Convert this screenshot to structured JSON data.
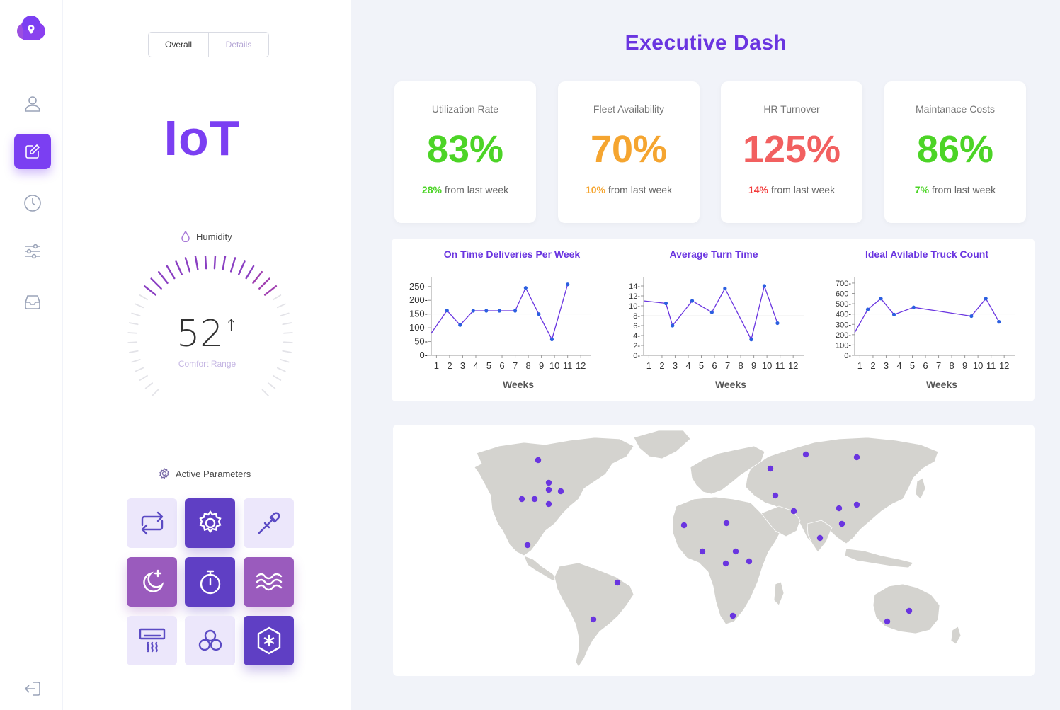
{
  "nav": {
    "items": [
      {
        "icon": "user-icon"
      },
      {
        "icon": "edit-icon",
        "active": true
      },
      {
        "icon": "clock-icon"
      },
      {
        "icon": "sliders-icon"
      },
      {
        "icon": "inbox-icon"
      }
    ],
    "logout_icon": "logout-icon"
  },
  "iot": {
    "tabs": [
      "Overall",
      "Details"
    ],
    "active_tab": "Overall",
    "title": "IoT",
    "humidity": {
      "label": "Humidity",
      "value": "52",
      "arrow": "↑",
      "caption": "Comfort Range",
      "level_fraction": 0.5
    },
    "active_parameters": {
      "label": "Active Parameters",
      "buttons": [
        {
          "icon": "repeat-icon",
          "style": "light"
        },
        {
          "icon": "settings-icon",
          "style": "dark"
        },
        {
          "icon": "eyedropper-icon",
          "style": "light"
        },
        {
          "icon": "night-mode-icon",
          "style": "mauve"
        },
        {
          "icon": "timer-icon",
          "style": "dark"
        },
        {
          "icon": "waves-icon",
          "style": "mauve"
        },
        {
          "icon": "air-conditioner-icon",
          "style": "light"
        },
        {
          "icon": "fan-icon",
          "style": "light"
        },
        {
          "icon": "snowflake-icon",
          "style": "dark"
        }
      ]
    }
  },
  "dashboard": {
    "title": "Executive Dash",
    "kpis": [
      {
        "title": "Utilization Rate",
        "value": "83%",
        "change": "28%",
        "suffix": " from last week",
        "color": "#4cd426"
      },
      {
        "title": "Fleet Availability",
        "value": "70%",
        "change": "10%",
        "suffix": " from last week",
        "color": "#f5a530"
      },
      {
        "title": "HR Turnover",
        "value": "125%",
        "change": "14%",
        "suffix": " from last week",
        "color": "#f26060"
      },
      {
        "title": "Maintanace Costs",
        "value": "86%",
        "change": "7%",
        "suffix": " from last week",
        "color": "#4cd426"
      }
    ]
  },
  "chart_data": [
    {
      "type": "line",
      "title": "On Time Deliveries Per Week",
      "xlabel": "Weeks",
      "ylabel": "",
      "x": [
        1,
        2,
        3,
        4,
        5,
        6,
        7,
        8,
        9,
        10,
        11,
        12
      ],
      "categories": [
        "1",
        "2",
        "3",
        "4",
        "5",
        "6",
        "7",
        "8",
        "9",
        "10",
        "11",
        "12"
      ],
      "y": [
        80,
        163,
        110,
        162,
        162,
        162,
        162,
        245,
        150,
        58,
        258,
        null
      ],
      "x_points": [
        0.8,
        2,
        3,
        4,
        5,
        6,
        7.2,
        8,
        9,
        10,
        11.2
      ],
      "y_points": [
        80,
        163,
        110,
        162,
        162,
        162,
        162,
        245,
        150,
        58,
        258
      ],
      "yticks": [
        0,
        50,
        100,
        150,
        200,
        250
      ],
      "ylim": [
        0,
        270
      ],
      "xlim": [
        0.8,
        13
      ],
      "color": "#6a35e0",
      "point_color": "#2b5fe0"
    },
    {
      "type": "line",
      "title": "Average Turn Time",
      "xlabel": "Weeks",
      "ylabel": "",
      "categories": [
        "1",
        "2",
        "3",
        "4",
        "5",
        "6",
        "7",
        "8",
        "9",
        "10",
        "11",
        "12"
      ],
      "x_points": [
        0.8,
        2.5,
        3,
        4.5,
        6,
        7,
        9,
        10,
        11,
        12
      ],
      "y_points": [
        11,
        10.5,
        6,
        11,
        8.7,
        13.5,
        3.2,
        14,
        6.5,
        null
      ],
      "yticks": [
        0,
        2,
        4,
        6,
        8,
        10,
        12,
        14
      ],
      "ylim": [
        0,
        15
      ],
      "xlim": [
        0.8,
        13
      ],
      "color": "#6a35e0",
      "point_color": "#2b5fe0"
    },
    {
      "type": "line",
      "title": "Ideal Avilable Truck Count",
      "xlabel": "Weeks",
      "ylabel": "",
      "categories": [
        "1",
        "2",
        "3",
        "4",
        "5",
        "6",
        "7",
        "8",
        "9",
        "10",
        "11",
        "12"
      ],
      "x_points": [
        0.8,
        1.8,
        2.8,
        3.8,
        5.3,
        9.7,
        10.8,
        11.8
      ],
      "y_points": [
        220,
        445,
        550,
        395,
        465,
        380,
        550,
        325
      ],
      "yticks": [
        0,
        100,
        200,
        300,
        400,
        500,
        600,
        700
      ],
      "ylim": [
        0,
        720
      ],
      "xlim": [
        0.8,
        13
      ],
      "color": "#6a35e0",
      "point_color": "#2b5fe0"
    }
  ],
  "map": {
    "land_color": "#d4d3cf",
    "marker_color": "#6a35e0",
    "markers": 28
  }
}
